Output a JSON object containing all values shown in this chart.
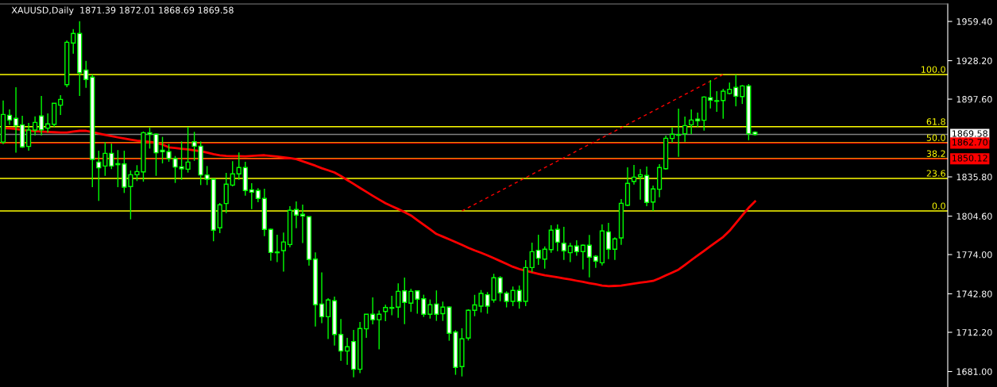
{
  "chart_data": {
    "type": "candlestick",
    "title": "XAUUSD,Daily  1871.39 1872.01 1868.69 1869.58",
    "color": "#00ff00",
    "categories": [
      null,
      null,
      null,
      null,
      null,
      null,
      null,
      null,
      null,
      null,
      null,
      null,
      null,
      null,
      null,
      null,
      null,
      null,
      null,
      null,
      null,
      null,
      null,
      null,
      null,
      null,
      null,
      null,
      null,
      null,
      null,
      null,
      null,
      null,
      null,
      null,
      null,
      null,
      null,
      null,
      null,
      null,
      null,
      null,
      null,
      null,
      null,
      null,
      null,
      null,
      null,
      null,
      null,
      null,
      null,
      null,
      null,
      null,
      null,
      null,
      null,
      null,
      null,
      null,
      null,
      null,
      null,
      null,
      null,
      null,
      null,
      null,
      null,
      null,
      null,
      null,
      null,
      null,
      null,
      null,
      null,
      null,
      null,
      null,
      null,
      null,
      null,
      null,
      null,
      null,
      null,
      null,
      null,
      null,
      null,
      null,
      null,
      null,
      null,
      null,
      null,
      null,
      null,
      null,
      null,
      null,
      null,
      null,
      null,
      null,
      null,
      null,
      null,
      null,
      null,
      null,
      null,
      null,
      null
    ],
    "ohlc": [
      [
        1863.4,
        1896.5,
        1861.9,
        1885.4
      ],
      [
        1884.8,
        1889.4,
        1877.2,
        1881.0
      ],
      [
        1882.3,
        1907.1,
        1855.0,
        1876.6
      ],
      [
        1877.2,
        1884.4,
        1858.8,
        1859.6
      ],
      [
        1860.0,
        1878.7,
        1856.6,
        1873.0
      ],
      [
        1873.0,
        1883.9,
        1868.8,
        1879.1
      ],
      [
        1884.2,
        1900.1,
        1868.8,
        1873.2
      ],
      [
        1874.5,
        1886.3,
        1871.1,
        1877.9
      ],
      [
        1877.6,
        1894.3,
        1875.5,
        1894.3
      ],
      [
        1892.8,
        1900.8,
        1885.0,
        1897.4
      ],
      [
        1909.1,
        1944.3,
        1907.1,
        1942.8
      ],
      [
        1942.2,
        1953.3,
        1933.7,
        1949.8
      ],
      [
        1949.8,
        1959.6,
        1900.1,
        1918.6
      ],
      [
        1920.7,
        1928.1,
        1906.6,
        1913.2
      ],
      [
        1915.1,
        1917.2,
        1827.6,
        1849.7
      ],
      [
        1847.6,
        1856.6,
        1816.7,
        1843.0
      ],
      [
        1844.4,
        1863.4,
        1836.6,
        1854.5
      ],
      [
        1854.5,
        1862.3,
        1842.0,
        1844.4
      ],
      [
        1845.5,
        1857.1,
        1827.6,
        1846.3
      ],
      [
        1846.1,
        1856.6,
        1823.0,
        1827.6
      ],
      [
        1828.1,
        1840.9,
        1802.0,
        1837.5
      ],
      [
        1837.5,
        1845.1,
        1832.5,
        1840.0
      ],
      [
        1839.8,
        1871.9,
        1832.0,
        1870.9
      ],
      [
        1870.9,
        1874.9,
        1858.3,
        1869.7
      ],
      [
        1869.7,
        1870.3,
        1836.6,
        1855.0
      ],
      [
        1857.0,
        1867.6,
        1846.5,
        1855.8
      ],
      [
        1855.8,
        1861.9,
        1847.8,
        1850.3
      ],
      [
        1850.3,
        1852.4,
        1831.0,
        1843.6
      ],
      [
        1843.8,
        1864.0,
        1833.5,
        1842.3
      ],
      [
        1841.9,
        1875.5,
        1839.2,
        1847.6
      ],
      [
        1863.7,
        1871.6,
        1848.6,
        1860.2
      ],
      [
        1860.2,
        1864.0,
        1829.3,
        1837.3
      ],
      [
        1837.3,
        1844.4,
        1829.3,
        1833.9
      ],
      [
        1833.9,
        1834.4,
        1784.6,
        1793.4
      ],
      [
        1795.3,
        1815.0,
        1791.0,
        1813.6
      ],
      [
        1814.6,
        1838.9,
        1807.0,
        1830.0
      ],
      [
        1829.3,
        1848.2,
        1828.3,
        1838.2
      ],
      [
        1838.2,
        1855.2,
        1833.5,
        1843.2
      ],
      [
        1843.2,
        1847.8,
        1820.8,
        1824.9
      ],
      [
        1825.5,
        1830.8,
        1810.2,
        1823.6
      ],
      [
        1824.9,
        1826.8,
        1815.6,
        1818.6
      ],
      [
        1818.6,
        1826.4,
        1788.7,
        1794.0
      ],
      [
        1794.0,
        1794.6,
        1769.2,
        1775.7
      ],
      [
        1776.0,
        1789.8,
        1768.0,
        1775.5
      ],
      [
        1777.2,
        1791.5,
        1760.4,
        1784.0
      ],
      [
        1782.0,
        1812.5,
        1779.9,
        1809.2
      ],
      [
        1809.8,
        1816.3,
        1795.0,
        1805.4
      ],
      [
        1806.0,
        1813.7,
        1783.1,
        1804.7
      ],
      [
        1804.1,
        1804.1,
        1765.2,
        1770.1
      ],
      [
        1770.4,
        1775.7,
        1716.8,
        1734.1
      ],
      [
        1734.7,
        1759.9,
        1719.4,
        1724.6
      ],
      [
        1724.6,
        1739.4,
        1706.8,
        1737.9
      ],
      [
        1737.3,
        1740.6,
        1701.7,
        1710.5
      ],
      [
        1710.5,
        1722.8,
        1689.5,
        1697.3
      ],
      [
        1697.3,
        1707.8,
        1686.4,
        1700.7
      ],
      [
        1704.9,
        1714.1,
        1676.5,
        1682.8
      ],
      [
        1682.8,
        1720.4,
        1679.7,
        1715.2
      ],
      [
        1715.0,
        1726.6,
        1707.8,
        1726.6
      ],
      [
        1726.6,
        1740.0,
        1718.5,
        1722.2
      ],
      [
        1722.2,
        1729.5,
        1698.6,
        1726.6
      ],
      [
        1728.8,
        1734.1,
        1721.1,
        1731.9
      ],
      [
        1731.3,
        1741.2,
        1725.7,
        1731.9
      ],
      [
        1732.2,
        1751.1,
        1723.8,
        1744.8
      ],
      [
        1745.2,
        1755.8,
        1718.7,
        1736.0
      ],
      [
        1735.4,
        1746.7,
        1728.5,
        1744.8
      ],
      [
        1745.2,
        1745.2,
        1727.0,
        1738.5
      ],
      [
        1738.9,
        1742.1,
        1724.4,
        1726.6
      ],
      [
        1726.6,
        1738.3,
        1723.1,
        1734.1
      ],
      [
        1734.7,
        1745.5,
        1721.3,
        1726.6
      ],
      [
        1727.0,
        1736.6,
        1721.3,
        1732.2
      ],
      [
        1732.2,
        1732.8,
        1705.5,
        1711.4
      ],
      [
        1712.4,
        1713.9,
        1678.4,
        1684.3
      ],
      [
        1684.9,
        1715.4,
        1677.1,
        1707.0
      ],
      [
        1707.6,
        1730.5,
        1705.7,
        1729.7
      ],
      [
        1729.7,
        1742.0,
        1725.0,
        1734.0
      ],
      [
        1733.0,
        1745.8,
        1728.0,
        1743.1
      ],
      [
        1742.1,
        1744.2,
        1727.0,
        1733.0
      ],
      [
        1737.9,
        1758.7,
        1735.8,
        1755.6
      ],
      [
        1755.6,
        1756.8,
        1736.8,
        1743.6
      ],
      [
        1743.3,
        1744.8,
        1732.0,
        1736.8
      ],
      [
        1736.8,
        1748.6,
        1733.0,
        1745.5
      ],
      [
        1745.5,
        1749.4,
        1731.0,
        1736.8
      ],
      [
        1736.8,
        1769.6,
        1733.0,
        1763.7
      ],
      [
        1763.7,
        1783.5,
        1760.0,
        1776.3
      ],
      [
        1777.4,
        1789.8,
        1765.8,
        1771.1
      ],
      [
        1770.4,
        1780.5,
        1762.9,
        1778.3
      ],
      [
        1778.0,
        1797.4,
        1775.5,
        1793.4
      ],
      [
        1794.0,
        1798.0,
        1776.7,
        1783.9
      ],
      [
        1783.0,
        1796.1,
        1769.8,
        1777.0
      ],
      [
        1775.5,
        1783.3,
        1768.0,
        1780.8
      ],
      [
        1780.8,
        1785.4,
        1773.0,
        1776.4
      ],
      [
        1776.4,
        1782.1,
        1762.2,
        1781.4
      ],
      [
        1781.4,
        1789.6,
        1755.9,
        1772.0
      ],
      [
        1772.6,
        1773.6,
        1763.5,
        1768.8
      ],
      [
        1767.5,
        1798.0,
        1765.4,
        1792.8
      ],
      [
        1792.1,
        1799.3,
        1770.4,
        1778.3
      ],
      [
        1778.3,
        1787.7,
        1769.8,
        1786.5
      ],
      [
        1787.3,
        1818.2,
        1781.8,
        1814.8
      ],
      [
        1813.3,
        1843.4,
        1812.5,
        1830.6
      ],
      [
        1832.2,
        1845.3,
        1829.7,
        1835.6
      ],
      [
        1836.0,
        1841.9,
        1817.7,
        1837.5
      ],
      [
        1836.9,
        1844.0,
        1812.5,
        1815.5
      ],
      [
        1815.8,
        1828.9,
        1808.7,
        1826.2
      ],
      [
        1826.0,
        1845.9,
        1819.6,
        1843.2
      ],
      [
        1842.3,
        1868.6,
        1841.5,
        1866.5
      ],
      [
        1866.3,
        1875.1,
        1862.9,
        1869.7
      ],
      [
        1868.9,
        1890.0,
        1851.8,
        1869.3
      ],
      [
        1870.1,
        1883.7,
        1863.8,
        1876.6
      ],
      [
        1877.2,
        1889.4,
        1869.7,
        1881.0
      ],
      [
        1881.8,
        1886.9,
        1875.5,
        1880.4
      ],
      [
        1880.8,
        1899.9,
        1872.6,
        1899.3
      ],
      [
        1898.7,
        1912.8,
        1890.2,
        1896.8
      ],
      [
        1896.4,
        1903.9,
        1887.5,
        1895.9
      ],
      [
        1896.5,
        1905.8,
        1882.0,
        1903.9
      ],
      [
        1902.1,
        1910.8,
        1901.4,
        1905.4
      ],
      [
        1906.9,
        1917.2,
        1891.9,
        1899.9
      ],
      [
        1899.7,
        1908.8,
        1893.8,
        1908.1
      ],
      [
        1908.1,
        1909.6,
        1865.0,
        1870.1
      ],
      [
        1871.39,
        1872.01,
        1868.69,
        1869.58
      ]
    ],
    "series": [
      {
        "type": "line",
        "color": "#ff0000",
        "line_style": "solid",
        "values": [
          1874.5,
          1874.4,
          1873.9,
          1873.1,
          1872.5,
          1872.2,
          1871.8,
          1871.6,
          1871.3,
          1871.1,
          1871.1,
          1871.9,
          1872.4,
          1872.4,
          1871.4,
          1870.3,
          1869.2,
          1868.2,
          1867.2,
          1866.3,
          1865.4,
          1864.6,
          1864.1,
          1863.6,
          1862.8,
          1861.5,
          1859.3,
          1858.7,
          1858.2,
          1857.6,
          1856.9,
          1856.2,
          1855.1,
          1853.9,
          1853.0,
          1852.4,
          1852.3,
          1852.3,
          1852.2,
          1852.4,
          1852.7,
          1853.0,
          1852.5,
          1852.0,
          1851.4,
          1850.7,
          1849.9,
          1848.2,
          1846.5,
          1844.7,
          1842.7,
          1841.0,
          1839.3,
          1836.5,
          1833.3,
          1830.2,
          1827.0,
          1823.9,
          1820.8,
          1817.8,
          1814.9,
          1812.5,
          1810.2,
          1807.8,
          1805.1,
          1801.4,
          1797.8,
          1794.1,
          1790.4,
          1788.3,
          1786.2,
          1783.9,
          1781.7,
          1779.4,
          1777.3,
          1775.4,
          1773.4,
          1771.2,
          1768.9,
          1766.6,
          1764.3,
          1762.5,
          1761.2,
          1759.9,
          1758.7,
          1757.6,
          1756.7,
          1755.9,
          1755.0,
          1754.2,
          1753.2,
          1752.3,
          1751.3,
          1750.4,
          1749.4,
          1748.9,
          1749.1,
          1749.4,
          1750.2,
          1750.9,
          1751.7,
          1752.3,
          1753.1,
          1755.1,
          1757.4,
          1759.7,
          1762.1,
          1765.8,
          1769.6,
          1773.3,
          1777.0,
          1780.7,
          1784.3,
          1788.0,
          1792.9,
          1799.0,
          1805.1,
          1811.2,
          1816.3
        ]
      },
      {
        "type": "line",
        "color": "#ff0000",
        "line_style": "dashed",
        "values": [
          null,
          null,
          null,
          null,
          null,
          null,
          null,
          null,
          null,
          null,
          null,
          null,
          null,
          null,
          null,
          null,
          null,
          null,
          null,
          null,
          null,
          null,
          null,
          null,
          null,
          null,
          null,
          null,
          null,
          null,
          null,
          null,
          null,
          null,
          null,
          null,
          null,
          null,
          null,
          null,
          null,
          null,
          null,
          null,
          null,
          null,
          null,
          null,
          null,
          null,
          null,
          null,
          null,
          null,
          null,
          null,
          null,
          null,
          null,
          null,
          null,
          null,
          null,
          null,
          null,
          null,
          null,
          null,
          null,
          null,
          null,
          null,
          1808.7,
          null,
          null,
          null,
          null,
          null,
          null,
          null,
          null,
          null,
          null,
          null,
          null,
          null,
          null,
          null,
          null,
          null,
          null,
          null,
          null,
          null,
          null,
          null,
          null,
          null,
          null,
          null,
          null,
          null,
          null,
          null,
          null,
          null,
          null,
          null,
          null,
          null,
          null,
          null,
          null,
          1917.2,
          null,
          null,
          null,
          null,
          null
        ]
      }
    ],
    "ref_lines": [
      {
        "axis": "y",
        "value": 1917.2,
        "color": "#ffff00"
      },
      {
        "axis": "y",
        "value": 1875.7,
        "color": "#ffff00"
      },
      {
        "axis": "y",
        "value": 1862.9,
        "color": "#ffff00"
      },
      {
        "axis": "y",
        "value": 1850.3,
        "color": "#ffff00"
      },
      {
        "axis": "y",
        "value": 1834.6,
        "color": "#ffff00"
      },
      {
        "axis": "y",
        "value": 1808.7,
        "color": "#ffff00"
      },
      {
        "axis": "y",
        "value": 1869.58,
        "label": "1869.58",
        "color": "#808080"
      },
      {
        "axis": "y",
        "value": 1862.7,
        "label": "1862.70",
        "color": "#ff0000"
      },
      {
        "axis": "y",
        "value": 1850.12,
        "label": "1850.12",
        "color": "#ff0000"
      }
    ],
    "annotations": [
      {
        "text": "100.0",
        "y": 1917.2
      },
      {
        "text": "61.8",
        "y": 1875.7
      },
      {
        "text": "50.0",
        "y": 1862.9
      },
      {
        "text": "38.2",
        "y": 1850.3
      },
      {
        "text": "23.6",
        "y": 1834.6
      },
      {
        "text": "0.0",
        "y": 1808.7
      }
    ],
    "ylim": [
      1668.7,
      1973.3
    ],
    "yticks": [
      {
        "value": 1959.4,
        "label": "1959.40"
      },
      {
        "value": 1928.2,
        "label": "1928.20"
      },
      {
        "value": 1897.6,
        "label": "1897.60"
      },
      {
        "value": 1835.8,
        "label": "1835.80"
      },
      {
        "value": 1804.6,
        "label": "1804.60"
      },
      {
        "value": 1774.0,
        "label": "1774.00"
      },
      {
        "value": 1742.8,
        "label": "1742.80"
      },
      {
        "value": 1712.2,
        "label": "1712.20"
      },
      {
        "value": 1681.0,
        "label": "1681.00"
      }
    ],
    "tick_labels": "y"
  }
}
